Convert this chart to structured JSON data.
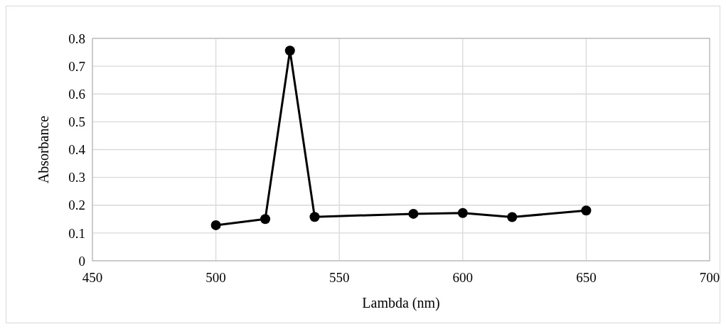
{
  "chart_data": {
    "type": "line",
    "xlabel": "Lambda (nm)",
    "ylabel": "Absorbance",
    "x": [
      500,
      520,
      530,
      540,
      580,
      600,
      620,
      650
    ],
    "series": [
      {
        "color": "#000000",
        "values": [
          0.128,
          0.15,
          0.756,
          0.158,
          0.169,
          0.172,
          0.157,
          0.181
        ]
      }
    ],
    "xlim": [
      450,
      700
    ],
    "xticks": [
      450,
      500,
      550,
      600,
      650,
      700
    ],
    "ylim": [
      0,
      0.8
    ],
    "yticks": [
      0,
      0.1,
      0.2,
      0.3,
      0.4,
      0.5,
      0.6,
      0.7,
      0.8
    ],
    "grid": true,
    "marker": "circle",
    "line_style": "solid"
  }
}
